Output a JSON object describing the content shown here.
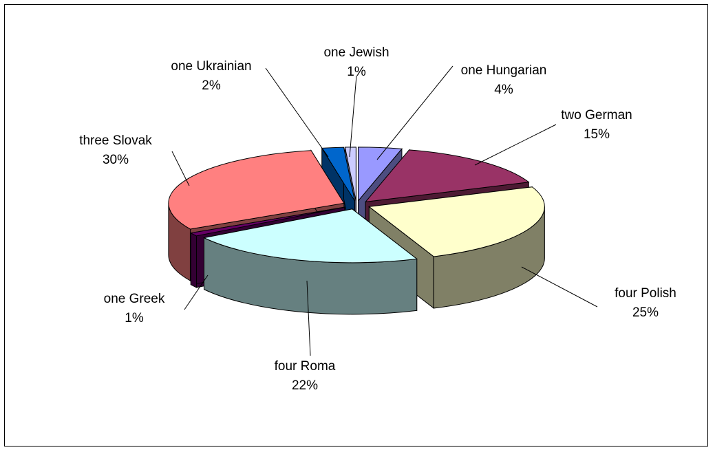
{
  "chart_data": {
    "type": "pie",
    "style": "3d-exploded",
    "slices": [
      {
        "label": "one Hungarian",
        "pct": "4%",
        "value": 4,
        "top": "#9999ff",
        "side": "#4d4d80"
      },
      {
        "label": "two German",
        "pct": "15%",
        "value": 15,
        "top": "#993366",
        "side": "#4d1a33"
      },
      {
        "label": "four Polish",
        "pct": "25%",
        "value": 25,
        "top": "#ffffcc",
        "side": "#808066"
      },
      {
        "label": "four Roma",
        "pct": "22%",
        "value": 22,
        "top": "#ccffff",
        "side": "#668080"
      },
      {
        "label": "one Greek",
        "pct": "1%",
        "value": 1,
        "top": "#660066",
        "side": "#330033"
      },
      {
        "label": "three Slovak",
        "pct": "30%",
        "value": 30,
        "top": "#ff8080",
        "side": "#804040"
      },
      {
        "label": "one Ukrainian",
        "pct": "2%",
        "value": 2,
        "top": "#0066cc",
        "side": "#003366"
      },
      {
        "label": "one Jewish",
        "pct": "1%",
        "value": 1,
        "top": "#ccccff",
        "side": "#666680"
      }
    ]
  }
}
